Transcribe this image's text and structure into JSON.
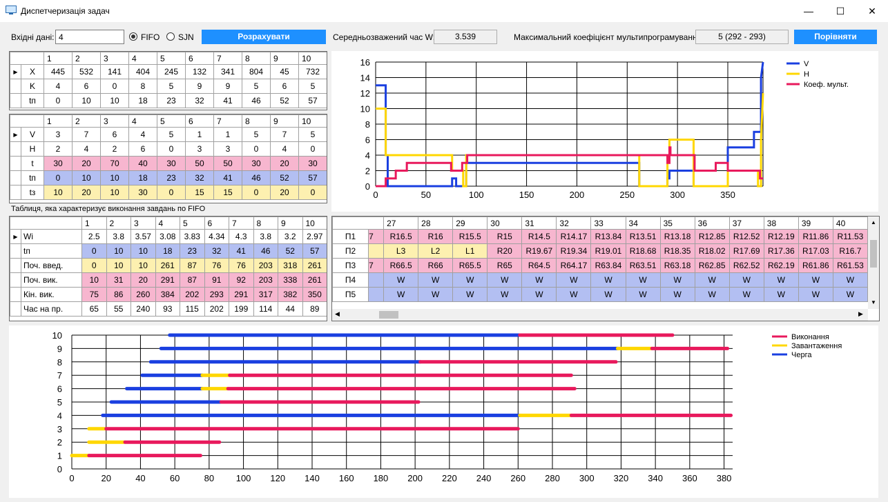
{
  "window": {
    "title": "Диспетчеризація задач",
    "minimize": "—",
    "maximize": "☐",
    "close": "✕"
  },
  "controls": {
    "input_label": "Вхідні дані:",
    "input_value": "4",
    "radio_fifo": "FIFO",
    "radio_sjn": "SJN",
    "calc_button": "Розрахувати",
    "avg_label": "Середньозважений час W:",
    "avg_value": "3.539",
    "max_label": "Максимальний коефіцієнт мультипрограмування:",
    "max_value": "5 (292 - 293)",
    "compare_button": "Порівняти"
  },
  "table1": {
    "headers": [
      "1",
      "2",
      "3",
      "4",
      "5",
      "6",
      "7",
      "8",
      "9",
      "10"
    ],
    "rows": [
      {
        "label": "X",
        "values": [
          "445",
          "532",
          "141",
          "404",
          "245",
          "132",
          "341",
          "804",
          "45",
          "732"
        ]
      },
      {
        "label": "K",
        "values": [
          "4",
          "6",
          "0",
          "8",
          "5",
          "9",
          "9",
          "5",
          "6",
          "5"
        ]
      },
      {
        "label": "tп",
        "values": [
          "0",
          "10",
          "10",
          "18",
          "23",
          "32",
          "41",
          "46",
          "52",
          "57"
        ]
      }
    ]
  },
  "table2": {
    "headers": [
      "1",
      "2",
      "3",
      "4",
      "5",
      "6",
      "7",
      "8",
      "9",
      "10"
    ],
    "rows": [
      {
        "label": "V",
        "values": [
          "3",
          "7",
          "6",
          "4",
          "5",
          "1",
          "1",
          "5",
          "7",
          "5"
        ],
        "color": ""
      },
      {
        "label": "H",
        "values": [
          "2",
          "4",
          "2",
          "6",
          "0",
          "3",
          "3",
          "0",
          "4",
          "0"
        ],
        "color": ""
      },
      {
        "label": "t",
        "values": [
          "30",
          "20",
          "70",
          "40",
          "30",
          "50",
          "50",
          "30",
          "20",
          "30"
        ],
        "color": "pink"
      },
      {
        "label": "tп",
        "values": [
          "0",
          "10",
          "10",
          "18",
          "23",
          "32",
          "41",
          "46",
          "52",
          "57"
        ],
        "color": "blue"
      },
      {
        "label": "tз",
        "values": [
          "10",
          "20",
          "10",
          "30",
          "0",
          "15",
          "15",
          "0",
          "20",
          "0"
        ],
        "color": "yellow"
      }
    ]
  },
  "table3_caption": "Таблиця, яка характеризує виконання завдань по FIFO",
  "table3": {
    "headers": [
      "1",
      "2",
      "3",
      "4",
      "5",
      "6",
      "7",
      "8",
      "9",
      "10"
    ],
    "rows": [
      {
        "label": "Wi",
        "values": [
          "2.5",
          "3.8",
          "3.57",
          "3.08",
          "3.83",
          "4.34",
          "4.3",
          "3.8",
          "3.2",
          "2.97"
        ],
        "color": ""
      },
      {
        "label": "tп",
        "values": [
          "0",
          "10",
          "10",
          "18",
          "23",
          "32",
          "41",
          "46",
          "52",
          "57"
        ],
        "color": "blue"
      },
      {
        "label": "Поч. введ.",
        "values": [
          "0",
          "10",
          "10",
          "261",
          "87",
          "76",
          "76",
          "203",
          "318",
          "261"
        ],
        "color": "yellow"
      },
      {
        "label": "Поч. вик.",
        "values": [
          "10",
          "31",
          "20",
          "291",
          "87",
          "91",
          "92",
          "203",
          "338",
          "261"
        ],
        "color": "pink"
      },
      {
        "label": "Кін. вик.",
        "values": [
          "75",
          "86",
          "260",
          "384",
          "202",
          "293",
          "291",
          "317",
          "382",
          "350"
        ],
        "color": "pink"
      },
      {
        "label": "Час на пр.",
        "values": [
          "65",
          "55",
          "240",
          "93",
          "115",
          "202",
          "199",
          "114",
          "44",
          "89"
        ],
        "color": ""
      }
    ]
  },
  "table4": {
    "headers": [
      "27",
      "28",
      "29",
      "30",
      "31",
      "32",
      "33",
      "34",
      "35",
      "36",
      "37",
      "38",
      "39",
      "40"
    ],
    "rows": [
      {
        "label": "П1",
        "partial": "7",
        "values": [
          "R16.5",
          "R16",
          "R15.5",
          "R15",
          "R14.5",
          "R14.17",
          "R13.84",
          "R13.51",
          "R13.18",
          "R12.85",
          "R12.52",
          "R12.19",
          "R11.86",
          "R11.53"
        ],
        "colors": [
          "pink",
          "pink",
          "pink",
          "pink",
          "pink",
          "pink",
          "pink",
          "pink",
          "pink",
          "pink",
          "pink",
          "pink",
          "pink",
          "pink"
        ]
      },
      {
        "label": "П2",
        "partial": "",
        "values": [
          "L3",
          "L2",
          "L1",
          "R20",
          "R19.67",
          "R19.34",
          "R19.01",
          "R18.68",
          "R18.35",
          "R18.02",
          "R17.69",
          "R17.36",
          "R17.03",
          "R16.7"
        ],
        "colors": [
          "yellow",
          "yellow",
          "yellow",
          "pink",
          "pink",
          "pink",
          "pink",
          "pink",
          "pink",
          "pink",
          "pink",
          "pink",
          "pink",
          "pink"
        ]
      },
      {
        "label": "П3",
        "partial": "7",
        "values": [
          "R66.5",
          "R66",
          "R65.5",
          "R65",
          "R64.5",
          "R64.17",
          "R63.84",
          "R63.51",
          "R63.18",
          "R62.85",
          "R62.52",
          "R62.19",
          "R61.86",
          "R61.53"
        ],
        "colors": [
          "pink",
          "pink",
          "pink",
          "pink",
          "pink",
          "pink",
          "pink",
          "pink",
          "pink",
          "pink",
          "pink",
          "pink",
          "pink",
          "pink"
        ]
      },
      {
        "label": "П4",
        "partial": "",
        "values": [
          "W",
          "W",
          "W",
          "W",
          "W",
          "W",
          "W",
          "W",
          "W",
          "W",
          "W",
          "W",
          "W",
          "W"
        ],
        "colors": [
          "blue",
          "blue",
          "blue",
          "blue",
          "blue",
          "blue",
          "blue",
          "blue",
          "blue",
          "blue",
          "blue",
          "blue",
          "blue",
          "blue"
        ]
      },
      {
        "label": "П5",
        "partial": "",
        "values": [
          "W",
          "W",
          "W",
          "W",
          "W",
          "W",
          "W",
          "W",
          "W",
          "W",
          "W",
          "W",
          "W",
          "W"
        ],
        "colors": [
          "blue",
          "blue",
          "blue",
          "blue",
          "blue",
          "blue",
          "blue",
          "blue",
          "blue",
          "blue",
          "blue",
          "blue",
          "blue",
          "blue"
        ]
      }
    ]
  },
  "chart_data": [
    {
      "type": "line",
      "xlim": [
        0,
        385
      ],
      "ylim": [
        0,
        16
      ],
      "xticks": [
        0,
        50,
        100,
        150,
        200,
        250,
        300,
        350
      ],
      "yticks": [
        0,
        2,
        4,
        6,
        8,
        10,
        12,
        14,
        16
      ],
      "grid": true,
      "legend_position": "top-right",
      "series": [
        {
          "name": "V",
          "color": "#1a3fe0",
          "x": [
            0,
            10,
            10,
            12,
            12,
            76,
            76,
            80,
            80,
            90,
            90,
            262,
            262,
            290,
            290,
            292,
            292,
            300,
            300,
            316,
            316,
            350,
            350,
            376,
            376,
            383,
            383,
            385
          ],
          "y": [
            13,
            13,
            4,
            4,
            0,
            0,
            1,
            1,
            0,
            0,
            3,
            3,
            0,
            0,
            1,
            1,
            2,
            2,
            2,
            2,
            0,
            0,
            5,
            5,
            7,
            7,
            14,
            16
          ]
        },
        {
          "name": "H",
          "color": "#ffd700",
          "x": [
            0,
            10,
            10,
            76,
            76,
            87,
            87,
            90,
            90,
            262,
            262,
            290,
            290,
            292,
            292,
            316,
            316,
            350,
            350,
            380,
            380,
            383,
            383,
            385
          ],
          "y": [
            10,
            10,
            4,
            4,
            2,
            2,
            0,
            0,
            4,
            4,
            0,
            0,
            4,
            4,
            6,
            6,
            0,
            0,
            2,
            2,
            0,
            0,
            6,
            12
          ]
        },
        {
          "name": "Коеф. мульт.",
          "color": "#e8195c",
          "x": [
            0,
            10,
            10,
            15,
            15,
            20,
            20,
            31,
            31,
            75,
            75,
            86,
            86,
            91,
            91,
            290,
            290,
            292,
            292,
            293,
            293,
            317,
            317,
            338,
            338,
            350,
            350,
            382,
            382,
            385
          ],
          "y": [
            0,
            0,
            1,
            1,
            1,
            1,
            2,
            2,
            3,
            3,
            2,
            2,
            3,
            3,
            4,
            4,
            3,
            3,
            5,
            5,
            4,
            4,
            2,
            2,
            3,
            3,
            2,
            2,
            1,
            1
          ]
        }
      ]
    },
    {
      "type": "gantt",
      "xlim": [
        0,
        385
      ],
      "ylim": [
        0,
        10
      ],
      "xticks": [
        0,
        20,
        40,
        60,
        80,
        100,
        120,
        140,
        160,
        180,
        200,
        220,
        240,
        260,
        280,
        300,
        320,
        340,
        360,
        380
      ],
      "yticks": [
        0,
        1,
        2,
        3,
        4,
        5,
        6,
        7,
        8,
        9,
        10
      ],
      "grid": true,
      "legend_position": "top-right",
      "legend": [
        {
          "name": "Виконання",
          "color": "#e8195c"
        },
        {
          "name": "Завантаження",
          "color": "#ffd700"
        },
        {
          "name": "Черга",
          "color": "#1a3fe0"
        }
      ],
      "tasks": [
        {
          "task": 1,
          "queue": [
            0,
            0
          ],
          "load": [
            0,
            10
          ],
          "exec": [
            10,
            75
          ]
        },
        {
          "task": 2,
          "queue": [
            10,
            10
          ],
          "load": [
            10,
            31
          ],
          "exec": [
            31,
            86
          ]
        },
        {
          "task": 3,
          "queue": [
            10,
            10
          ],
          "load": [
            10,
            20
          ],
          "exec": [
            20,
            260
          ]
        },
        {
          "task": 4,
          "queue": [
            18,
            261
          ],
          "load": [
            261,
            291
          ],
          "exec": [
            291,
            384
          ]
        },
        {
          "task": 5,
          "queue": [
            23,
            87
          ],
          "load": [
            87,
            87
          ],
          "exec": [
            87,
            202
          ]
        },
        {
          "task": 6,
          "queue": [
            32,
            76
          ],
          "load": [
            76,
            91
          ],
          "exec": [
            91,
            293
          ]
        },
        {
          "task": 7,
          "queue": [
            41,
            76
          ],
          "load": [
            76,
            92
          ],
          "exec": [
            92,
            291
          ]
        },
        {
          "task": 8,
          "queue": [
            46,
            203
          ],
          "load": [
            203,
            203
          ],
          "exec": [
            203,
            317
          ]
        },
        {
          "task": 9,
          "queue": [
            52,
            318
          ],
          "load": [
            318,
            338
          ],
          "exec": [
            338,
            382
          ]
        },
        {
          "task": 10,
          "queue": [
            57,
            261
          ],
          "load": [
            261,
            261
          ],
          "exec": [
            261,
            350
          ]
        }
      ]
    }
  ]
}
